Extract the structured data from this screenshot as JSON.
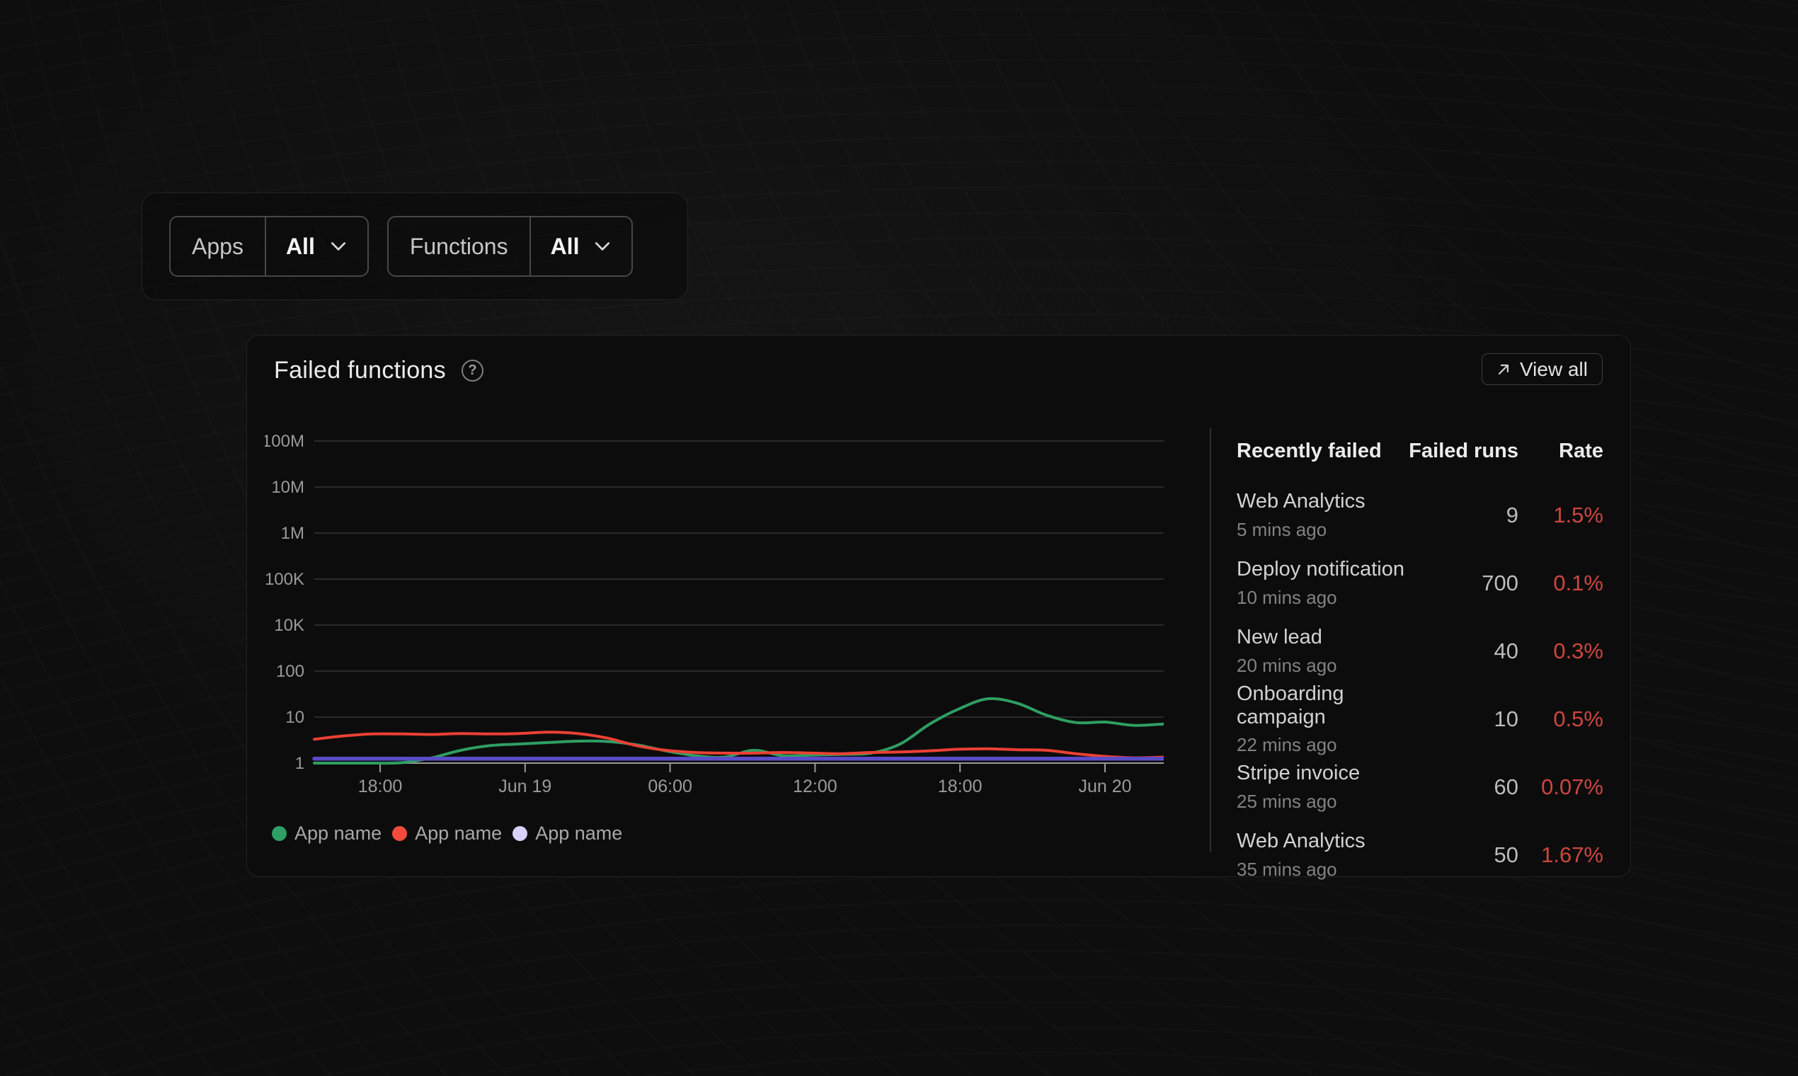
{
  "filters": {
    "groups": [
      {
        "label": "Apps",
        "value": "All"
      },
      {
        "label": "Functions",
        "value": "All"
      }
    ]
  },
  "card": {
    "title": "Failed functions",
    "help_glyph": "?",
    "view_all_label": "View all"
  },
  "chart_data": {
    "type": "line",
    "y_scale": "log10",
    "grid": "horizontal",
    "legend_position": "bottom-left",
    "y_ticks": [
      "100M",
      "10M",
      "1M",
      "100K",
      "10K",
      "100",
      "10",
      "1"
    ],
    "x_ticks": [
      "18:00",
      "Jun 19",
      "06:00",
      "12:00",
      "18:00",
      "Jun 20"
    ],
    "colors": {
      "grid": "#343434",
      "axis": "#9a9a9a",
      "tick_text": "#9a9a9a"
    },
    "series": [
      {
        "name": "App name",
        "color": "#2f9e63",
        "dot_color": "#2fa065",
        "width": 4,
        "values": [
          1.0,
          0.97,
          1.0,
          1.02,
          1.3,
          1.9,
          2.4,
          2.6,
          2.8,
          3.0,
          2.95,
          2.5,
          1.85,
          1.45,
          1.35,
          1.9,
          1.45,
          1.5,
          1.55,
          1.65,
          2.6,
          7.0,
          15.0,
          25.0,
          20.0,
          11.0,
          7.6,
          7.8,
          6.6,
          7.1
        ]
      },
      {
        "name": "App name",
        "color": "#ec4034",
        "dot_color": "#f24b3d",
        "width": 4,
        "values": [
          3.3,
          3.9,
          4.3,
          4.3,
          4.2,
          4.4,
          4.3,
          4.4,
          4.7,
          4.4,
          3.5,
          2.4,
          1.9,
          1.7,
          1.65,
          1.65,
          1.7,
          1.65,
          1.6,
          1.7,
          1.75,
          1.85,
          2.0,
          2.05,
          1.95,
          1.9,
          1.6,
          1.4,
          1.3,
          1.35
        ]
      },
      {
        "name": "App name",
        "color": "#5a4bc8",
        "dot_color": "#d9d2f8",
        "width": 5.5,
        "values": [
          1.25,
          1.25,
          1.25,
          1.25,
          1.25,
          1.25,
          1.25,
          1.25,
          1.25,
          1.25,
          1.25,
          1.25,
          1.25,
          1.25,
          1.25,
          1.25,
          1.25,
          1.25,
          1.25,
          1.25,
          1.25,
          1.25,
          1.25,
          1.25,
          1.25,
          1.25,
          1.25,
          1.25,
          1.25,
          1.25
        ]
      }
    ]
  },
  "table": {
    "headers": {
      "name": "Recently failed",
      "runs": "Failed runs",
      "rate": "Rate"
    },
    "rate_color": "#cb4740",
    "rows": [
      {
        "name": "Web Analytics",
        "time": "5 mins ago",
        "runs": "9",
        "rate": "1.5%"
      },
      {
        "name": "Deploy notification",
        "time": "10 mins ago",
        "runs": "700",
        "rate": "0.1%"
      },
      {
        "name": "New lead",
        "time": "20 mins ago",
        "runs": "40",
        "rate": "0.3%"
      },
      {
        "name": "Onboarding campaign",
        "time": "22 mins ago",
        "runs": "10",
        "rate": "0.5%"
      },
      {
        "name": "Stripe invoice",
        "time": "25 mins ago",
        "runs": "60",
        "rate": "0.07%"
      },
      {
        "name": "Web Analytics",
        "time": "35 mins ago",
        "runs": "50",
        "rate": "1.67%"
      }
    ]
  }
}
